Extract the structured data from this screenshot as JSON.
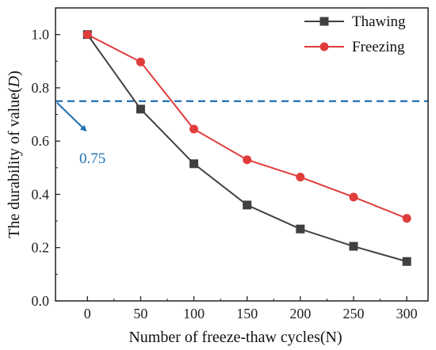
{
  "chart_data": {
    "type": "line",
    "x": [
      0,
      50,
      100,
      150,
      200,
      250,
      300
    ],
    "series": [
      {
        "name": "Thawing",
        "color": "#404040",
        "marker": "square",
        "values": [
          1.0,
          0.72,
          0.515,
          0.36,
          0.27,
          0.205,
          0.148
        ]
      },
      {
        "name": "Freezing",
        "color": "#e03c3c",
        "marker": "circle",
        "values": [
          1.0,
          0.897,
          0.645,
          0.53,
          0.465,
          0.39,
          0.31
        ]
      }
    ],
    "xlabel": "Number of freeze-thaw cycles(N)",
    "ylabel_prefix": "The durability of value(",
    "ylabel_var": "D",
    "ylabel_suffix": ")",
    "xlim": [
      -30,
      320
    ],
    "ylim": [
      0.0,
      1.1
    ],
    "xticks": [
      0,
      50,
      100,
      150,
      200,
      250,
      300
    ],
    "xtick_labels": [
      "0",
      "50",
      "100",
      "150",
      "200",
      "250",
      "300"
    ],
    "yticks": [
      0.0,
      0.2,
      0.4,
      0.6,
      0.8,
      1.0
    ],
    "ytick_labels": [
      "0.0",
      "0.2",
      "0.4",
      "0.6",
      "0.8",
      "1.0"
    ],
    "reference_line": {
      "y": 0.75,
      "color": "#1f6fb2",
      "style": "dashed"
    },
    "annotation": {
      "text": "0.75",
      "color": "#1f6fb2"
    },
    "legend": {
      "position": "top-right"
    },
    "grid": false
  }
}
